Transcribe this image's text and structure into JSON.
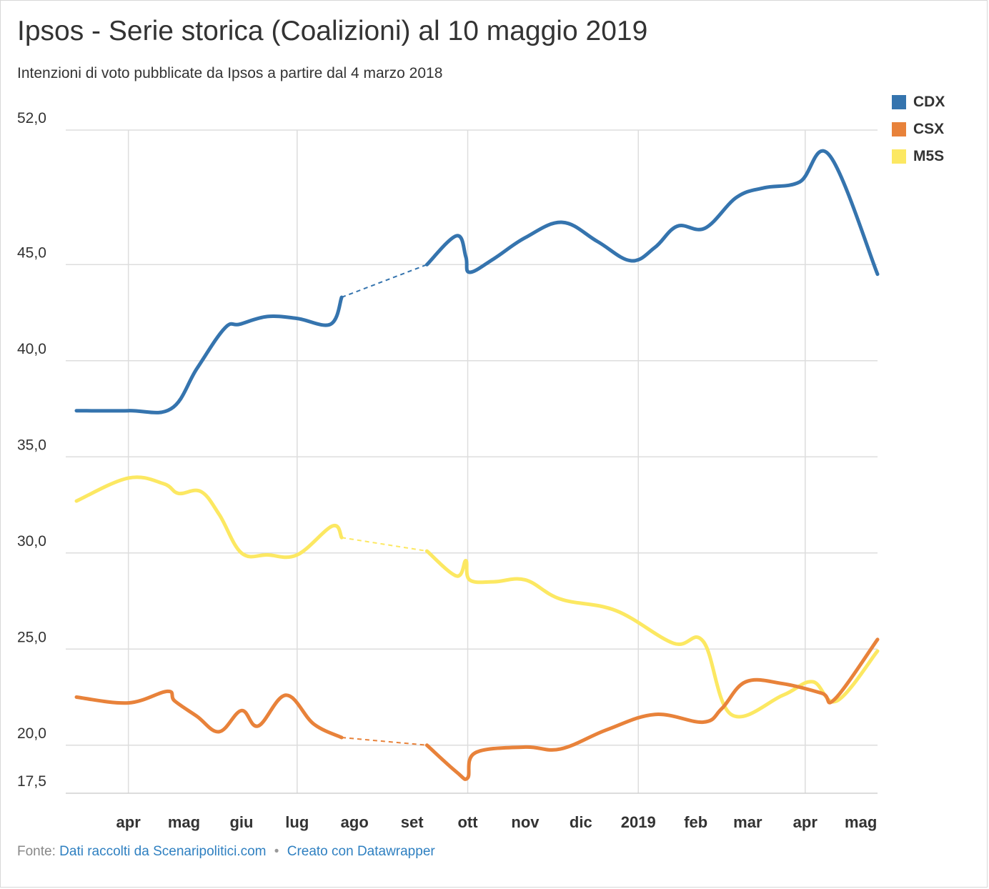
{
  "header": {
    "title": "Ipsos - Serie storica (Coalizioni) al 10 maggio 2019",
    "subtitle": "Intenzioni di voto pubblicate da Ipsos a partire dal 4 marzo 2018"
  },
  "footer": {
    "source_label": "Fonte:",
    "source_link": "Dati raccolti da Scenaripolitici.com",
    "separator": "•",
    "credit_link": "Creato con Datawrapper"
  },
  "colors": {
    "link": "#2f80c1",
    "grid": "#dddddd"
  },
  "chart_data": {
    "type": "line",
    "title": "Ipsos - Serie storica (Coalizioni) al 10 maggio 2019",
    "subtitle": "Intenzioni di voto pubblicate da Ipsos a partire dal 4 marzo 2018",
    "x_start": "2018-03-04",
    "x_end": "2019-05-10",
    "ylim": [
      17.5,
      52.0
    ],
    "yticks": [
      {
        "value": 52.0,
        "label": "52,0"
      },
      {
        "value": 45.0,
        "label": "45,0"
      },
      {
        "value": 40.0,
        "label": "40,0"
      },
      {
        "value": 35.0,
        "label": "35,0"
      },
      {
        "value": 30.0,
        "label": "30,0"
      },
      {
        "value": 25.0,
        "label": "25,0"
      },
      {
        "value": 20.0,
        "label": "20,0"
      },
      {
        "value": 17.5,
        "label": "17,5"
      }
    ],
    "xticks": [
      {
        "date": "2018-04-01",
        "label": "apr",
        "bold": false
      },
      {
        "date": "2018-05-01",
        "label": "mag",
        "bold": false
      },
      {
        "date": "2018-06-01",
        "label": "giu",
        "bold": false
      },
      {
        "date": "2018-07-01",
        "label": "lug",
        "bold": false
      },
      {
        "date": "2018-08-01",
        "label": "ago",
        "bold": false
      },
      {
        "date": "2018-09-01",
        "label": "set",
        "bold": false
      },
      {
        "date": "2018-10-01",
        "label": "ott",
        "bold": false
      },
      {
        "date": "2018-11-01",
        "label": "nov",
        "bold": false
      },
      {
        "date": "2018-12-01",
        "label": "dic",
        "bold": false
      },
      {
        "date": "2019-01-01",
        "label": "2019",
        "bold": true
      },
      {
        "date": "2019-02-01",
        "label": "feb",
        "bold": false
      },
      {
        "date": "2019-03-01",
        "label": "mar",
        "bold": false
      },
      {
        "date": "2019-04-01",
        "label": "apr",
        "bold": false
      },
      {
        "date": "2019-05-01",
        "label": "mag",
        "bold": false
      }
    ],
    "vertical_gridlines": [
      "2018-04-01",
      "2018-07-01",
      "2018-10-01",
      "2019-01-01",
      "2019-04-01"
    ],
    "legend_position": "top-right",
    "gap": {
      "from": "2018-07-25",
      "to": "2018-09-09",
      "style": "dashed"
    },
    "series": [
      {
        "name": "CDX",
        "color": "#3574ae",
        "points": [
          {
            "date": "2018-03-04",
            "value": 37.4
          },
          {
            "date": "2018-04-01",
            "value": 37.4
          },
          {
            "date": "2018-04-24",
            "value": 37.5
          },
          {
            "date": "2018-05-08",
            "value": 39.6
          },
          {
            "date": "2018-05-23",
            "value": 41.7
          },
          {
            "date": "2018-05-31",
            "value": 41.9
          },
          {
            "date": "2018-06-15",
            "value": 42.3
          },
          {
            "date": "2018-07-01",
            "value": 42.2
          },
          {
            "date": "2018-07-19",
            "value": 41.9
          },
          {
            "date": "2018-07-25",
            "value": 43.3
          },
          {
            "date": "2018-09-09",
            "value": 45.0
          },
          {
            "date": "2018-09-25",
            "value": 46.5
          },
          {
            "date": "2018-09-30",
            "value": 45.4
          },
          {
            "date": "2018-10-02",
            "value": 44.6
          },
          {
            "date": "2018-10-15",
            "value": 45.3
          },
          {
            "date": "2018-11-01",
            "value": 46.4
          },
          {
            "date": "2018-11-21",
            "value": 47.2
          },
          {
            "date": "2018-12-10",
            "value": 46.2
          },
          {
            "date": "2018-12-28",
            "value": 45.2
          },
          {
            "date": "2019-01-10",
            "value": 45.9
          },
          {
            "date": "2019-01-22",
            "value": 47.0
          },
          {
            "date": "2019-02-06",
            "value": 46.9
          },
          {
            "date": "2019-02-23",
            "value": 48.5
          },
          {
            "date": "2019-03-10",
            "value": 49.0
          },
          {
            "date": "2019-03-29",
            "value": 49.3
          },
          {
            "date": "2019-04-14",
            "value": 50.7
          },
          {
            "date": "2019-05-10",
            "value": 44.5
          }
        ]
      },
      {
        "name": "CSX",
        "color": "#e8823a",
        "points": [
          {
            "date": "2018-03-04",
            "value": 22.5
          },
          {
            "date": "2018-04-01",
            "value": 22.2
          },
          {
            "date": "2018-04-22",
            "value": 22.8
          },
          {
            "date": "2018-04-26",
            "value": 22.3
          },
          {
            "date": "2018-05-08",
            "value": 21.5
          },
          {
            "date": "2018-05-20",
            "value": 20.7
          },
          {
            "date": "2018-06-01",
            "value": 21.8
          },
          {
            "date": "2018-06-10",
            "value": 21.0
          },
          {
            "date": "2018-06-25",
            "value": 22.6
          },
          {
            "date": "2018-07-10",
            "value": 21.1
          },
          {
            "date": "2018-07-25",
            "value": 20.4
          },
          {
            "date": "2018-09-09",
            "value": 20.0
          },
          {
            "date": "2018-09-25",
            "value": 18.6
          },
          {
            "date": "2018-10-01",
            "value": 18.3
          },
          {
            "date": "2018-10-05",
            "value": 19.6
          },
          {
            "date": "2018-11-01",
            "value": 19.9
          },
          {
            "date": "2018-11-20",
            "value": 19.8
          },
          {
            "date": "2018-12-15",
            "value": 20.8
          },
          {
            "date": "2019-01-10",
            "value": 21.6
          },
          {
            "date": "2019-02-05",
            "value": 21.2
          },
          {
            "date": "2019-02-15",
            "value": 21.9
          },
          {
            "date": "2019-02-28",
            "value": 23.3
          },
          {
            "date": "2019-03-20",
            "value": 23.2
          },
          {
            "date": "2019-04-10",
            "value": 22.7
          },
          {
            "date": "2019-04-17",
            "value": 22.4
          },
          {
            "date": "2019-05-10",
            "value": 25.5
          }
        ]
      },
      {
        "name": "M5S",
        "color": "#fce862",
        "points": [
          {
            "date": "2018-03-04",
            "value": 32.7
          },
          {
            "date": "2018-04-01",
            "value": 33.9
          },
          {
            "date": "2018-04-20",
            "value": 33.6
          },
          {
            "date": "2018-04-28",
            "value": 33.1
          },
          {
            "date": "2018-05-10",
            "value": 33.2
          },
          {
            "date": "2018-05-20",
            "value": 32.0
          },
          {
            "date": "2018-06-01",
            "value": 30.0
          },
          {
            "date": "2018-06-15",
            "value": 29.9
          },
          {
            "date": "2018-07-01",
            "value": 29.9
          },
          {
            "date": "2018-07-20",
            "value": 31.4
          },
          {
            "date": "2018-07-25",
            "value": 30.8
          },
          {
            "date": "2018-09-09",
            "value": 30.1
          },
          {
            "date": "2018-09-25",
            "value": 28.8
          },
          {
            "date": "2018-09-30",
            "value": 29.6
          },
          {
            "date": "2018-10-02",
            "value": 28.6
          },
          {
            "date": "2018-10-15",
            "value": 28.5
          },
          {
            "date": "2018-11-01",
            "value": 28.6
          },
          {
            "date": "2018-11-20",
            "value": 27.6
          },
          {
            "date": "2018-12-20",
            "value": 27.0
          },
          {
            "date": "2019-01-20",
            "value": 25.3
          },
          {
            "date": "2019-02-05",
            "value": 25.4
          },
          {
            "date": "2019-02-20",
            "value": 21.6
          },
          {
            "date": "2019-03-20",
            "value": 22.6
          },
          {
            "date": "2019-04-05",
            "value": 23.3
          },
          {
            "date": "2019-04-18",
            "value": 22.3
          },
          {
            "date": "2019-05-10",
            "value": 24.9
          }
        ]
      }
    ]
  }
}
